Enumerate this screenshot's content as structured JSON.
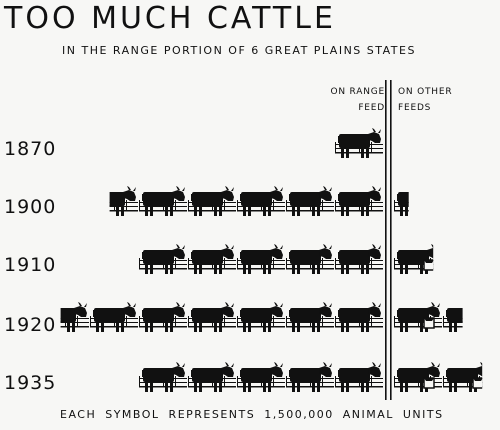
{
  "chart_data": {
    "type": "pictograph",
    "title": "TOO MUCH CATTLE",
    "subtitle": "IN THE RANGE PORTION OF 6 GREAT PLAINS STATES",
    "column_headers": {
      "left": [
        "ON RANGE",
        "FEED"
      ],
      "right": [
        "ON OTHER",
        "FEEDS"
      ]
    },
    "categories": [
      "1870",
      "1900",
      "1910",
      "1920",
      "1935"
    ],
    "series": [
      {
        "name": "ON RANGE FEED",
        "values": [
          1.0,
          5.6,
          5.0,
          6.6,
          5.0
        ]
      },
      {
        "name": "ON OTHER FEEDS",
        "values": [
          0,
          0.3,
          0.8,
          1.4,
          1.8
        ]
      }
    ],
    "unit": "EACH SYMBOL REPRESENTS 1,500,000 ANIMAL UNITS",
    "symbol": "cow-icon"
  }
}
